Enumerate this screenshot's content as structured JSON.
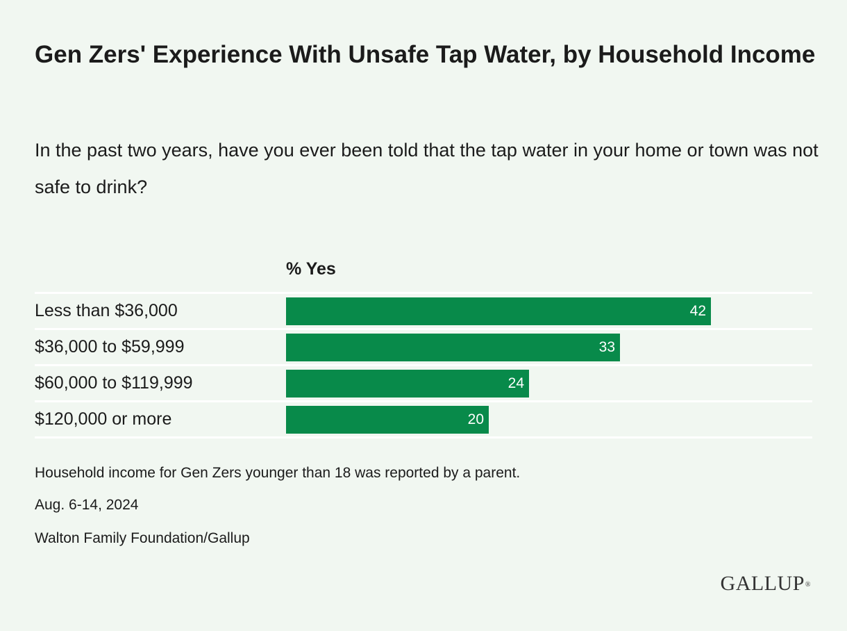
{
  "title": "Gen Zers' Experience With Unsafe Tap Water, by Household Income",
  "subtitle": "In the past two years, have you ever been told that the tap water in your home or town was not safe to drink?",
  "column_header": "% Yes",
  "footnotes": {
    "note": "Household income for Gen Zers younger than 18 was reported by a parent.",
    "dates": "Aug. 6-14, 2024",
    "source": "Walton Family Foundation/Gallup"
  },
  "logo": "GALLUP",
  "colors": {
    "background": "#f1f7f1",
    "bar": "#088a4a",
    "divider": "#ffffff",
    "value_text": "#ffffff"
  },
  "chart_data": {
    "type": "bar",
    "orientation": "horizontal",
    "title": "Gen Zers' Experience With Unsafe Tap Water, by Household Income",
    "categories": [
      "Less than $36,000",
      "$36,000 to $59,999",
      "$60,000 to $119,999",
      "$120,000 or more"
    ],
    "series": [
      {
        "name": "% Yes",
        "values": [
          42,
          33,
          24,
          20
        ]
      }
    ],
    "xlim": [
      0,
      52
    ],
    "grid": false,
    "legend": "none",
    "data_labels": true
  }
}
